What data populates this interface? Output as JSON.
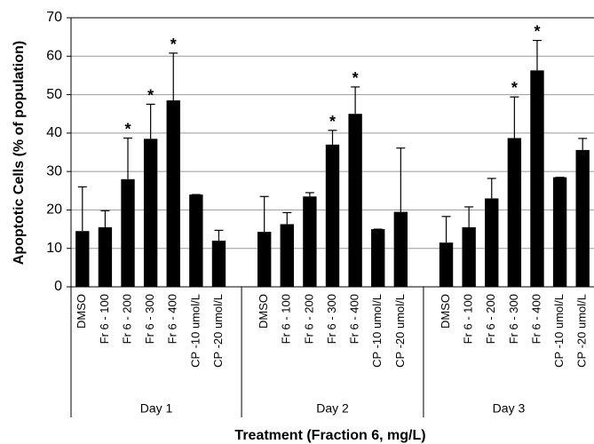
{
  "chart_data": {
    "type": "bar",
    "ylabel": "Apoptotic Cells (% of population)",
    "xlabel": "Treatment (Fraction 6, mg/L)",
    "ylim": [
      0,
      70
    ],
    "yticks": [
      0,
      10,
      20,
      30,
      40,
      50,
      60,
      70
    ],
    "grid": true,
    "color": "#000000",
    "groups": [
      {
        "name": "Day 1",
        "categories": [
          "DMSO",
          "Fr 6 - 100",
          "Fr 6 - 200",
          "Fr 6 - 300",
          "Fr 6 - 400",
          "CP -10 umol/L",
          "CP -20 umol/L"
        ],
        "values": [
          14.5,
          15.5,
          28,
          38.5,
          48.5,
          24,
          12
        ],
        "errors": [
          11.5,
          4.3,
          10.7,
          9,
          12.3,
          0,
          2.7
        ],
        "significance": [
          null,
          null,
          "*",
          "*",
          "*",
          null,
          null
        ]
      },
      {
        "name": "Day 2",
        "categories": [
          "DMSO",
          "Fr 6 - 100",
          "Fr 6 - 200",
          "Fr 6 - 300",
          "Fr 6 - 400",
          "CP -10 umol/L",
          "CP -20 umol/L"
        ],
        "values": [
          14.3,
          16.3,
          23.5,
          37,
          45,
          15,
          19.5
        ],
        "errors": [
          9.2,
          3,
          1,
          3.7,
          7,
          0,
          16.6
        ],
        "significance": [
          null,
          null,
          null,
          "*",
          "*",
          null,
          null
        ]
      },
      {
        "name": "Day 3",
        "categories": [
          "DMSO",
          "Fr 6 - 100",
          "Fr 6 - 200",
          "Fr 6 - 300",
          "Fr 6 - 400",
          "CP -10 umol/L",
          "CP -20 umol/L"
        ],
        "values": [
          11.5,
          15.5,
          23,
          38.7,
          56.3,
          28.5,
          35.6
        ],
        "errors": [
          6.8,
          5.3,
          5.2,
          10.7,
          7.8,
          0,
          3
        ],
        "significance": [
          null,
          null,
          null,
          "*",
          "*",
          null,
          null
        ]
      }
    ]
  }
}
